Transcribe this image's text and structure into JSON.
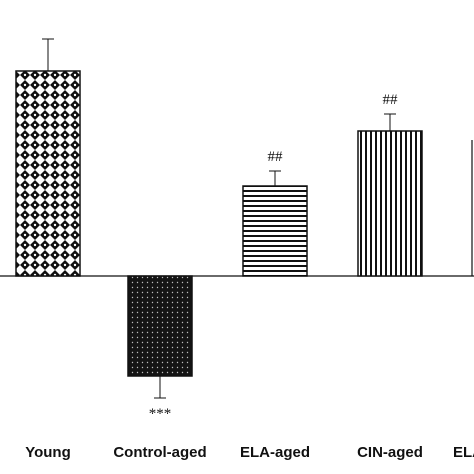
{
  "chart_data": {
    "type": "bar",
    "title": "",
    "xlabel": "",
    "ylabel": "",
    "categories": [
      "Young",
      "Control-aged",
      "ELA-aged",
      "CIN-aged",
      "ELA"
    ],
    "values": [
      205,
      -100,
      90,
      145,
      null
    ],
    "errors": [
      32,
      22,
      15,
      17,
      null
    ],
    "annotations": [
      "",
      "***",
      "##",
      "##",
      ""
    ],
    "ylim": [
      -140,
      280
    ],
    "grid": false,
    "legend": "none",
    "patterns": [
      "checker-diamond",
      "dotted-dark",
      "horizontal-stripes",
      "vertical-stripes",
      ""
    ]
  },
  "colors": {
    "bar_outline": "#111111",
    "pattern_fill": "#111111",
    "background": "#ffffff"
  }
}
